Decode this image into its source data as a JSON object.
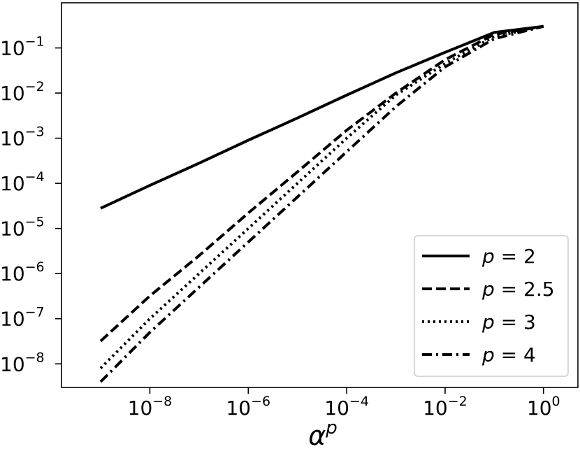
{
  "chart_data": {
    "type": "line",
    "xlabel": "α",
    "xlabel_sup": "p",
    "ylabel": "",
    "x_scale": "log",
    "y_scale": "log",
    "xlim": [
      1.6e-10,
      5.0
    ],
    "ylim": [
      3e-09,
      1.0
    ],
    "grid": false,
    "legend_position": "lower-right",
    "x_ticks": [
      {
        "exp": "−8",
        "value": 1e-08
      },
      {
        "exp": "−6",
        "value": 1e-06
      },
      {
        "exp": "−4",
        "value": 0.0001
      },
      {
        "exp": "−2",
        "value": 0.01
      },
      {
        "exp": "0",
        "value": 1
      }
    ],
    "y_ticks": [
      {
        "exp": "−8",
        "value": 1e-08
      },
      {
        "exp": "−7",
        "value": 1e-07
      },
      {
        "exp": "−6",
        "value": 1e-06
      },
      {
        "exp": "−5",
        "value": 1e-05
      },
      {
        "exp": "−4",
        "value": 0.0001
      },
      {
        "exp": "−3",
        "value": 0.001
      },
      {
        "exp": "−2",
        "value": 0.01
      },
      {
        "exp": "−1",
        "value": 0.1
      }
    ],
    "tick_base": "10",
    "x": [
      1e-09,
      1e-08,
      1e-07,
      1e-06,
      1e-05,
      0.0001,
      0.001,
      0.01,
      0.1,
      1
    ],
    "series": [
      {
        "name": "p = 2",
        "label_value": "2",
        "dash": "solid",
        "values": [
          2.8e-05,
          9e-05,
          0.00028,
          0.0009,
          0.0028,
          0.009,
          0.028,
          0.08,
          0.22,
          0.3
        ]
      },
      {
        "name": "p = 2.5",
        "label_value": "2.5",
        "dash": "dashed",
        "values": [
          3.2e-08,
          3.2e-07,
          2.5e-06,
          2.2e-05,
          0.00018,
          0.0015,
          0.01,
          0.055,
          0.2,
          0.3
        ]
      },
      {
        "name": "p = 3",
        "label_value": "3",
        "dash": "dotted",
        "values": [
          8e-09,
          1e-07,
          1e-06,
          1e-05,
          0.0001,
          0.001,
          0.009,
          0.045,
          0.18,
          0.3
        ]
      },
      {
        "name": "p = 4",
        "label_value": "4",
        "dash": "dashdot",
        "values": [
          4e-09,
          5e-08,
          5e-07,
          5e-06,
          5e-05,
          0.0005,
          0.005,
          0.038,
          0.16,
          0.3
        ]
      }
    ]
  }
}
